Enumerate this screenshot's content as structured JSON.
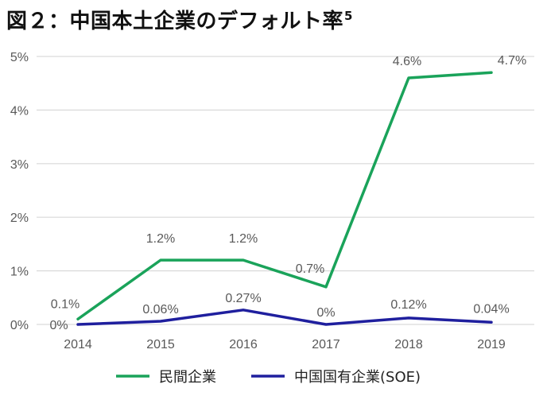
{
  "title": {
    "text": "図２：中国本土企業のデフォルト率",
    "footnote": "5"
  },
  "chart_data": {
    "type": "line",
    "x": [
      "2014",
      "2015",
      "2016",
      "2017",
      "2018",
      "2019"
    ],
    "ylim": [
      0,
      5
    ],
    "y_ticks": [
      {
        "value": 0,
        "label": "0%"
      },
      {
        "value": 1,
        "label": "1%"
      },
      {
        "value": 2,
        "label": "2%"
      },
      {
        "value": 3,
        "label": "3%"
      },
      {
        "value": 4,
        "label": "4%"
      },
      {
        "value": 5,
        "label": "5%"
      }
    ],
    "grid": true,
    "legend_position": "bottom",
    "series": [
      {
        "name": "民間企業",
        "color": "#1aa35a",
        "values": [
          0.1,
          1.2,
          1.2,
          0.7,
          4.6,
          4.7
        ],
        "labels": [
          "0.1%",
          "1.2%",
          "1.2%",
          "0.7%",
          "4.6%",
          "4.7%"
        ]
      },
      {
        "name": "中国国有企業(SOE)",
        "color": "#1f1f9e",
        "values": [
          0,
          0.06,
          0.27,
          0,
          0.12,
          0.04
        ],
        "labels": [
          "0%",
          "0.06%",
          "0.27%",
          "0%",
          "0.12%",
          "0.04%"
        ]
      }
    ]
  }
}
